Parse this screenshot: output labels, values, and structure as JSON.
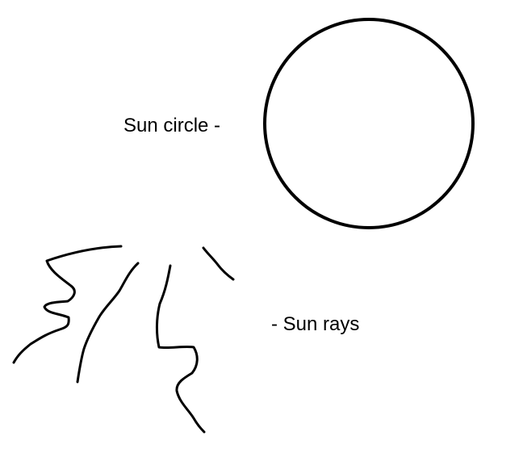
{
  "labels": {
    "sun_circle": "Sun circle -",
    "sun_rays": "- Sun rays"
  },
  "colors": {
    "background": "#ffffff",
    "ink": "#000000"
  },
  "elements": {
    "sun_circle_icon": "circle",
    "sun_ray_count": 5
  }
}
